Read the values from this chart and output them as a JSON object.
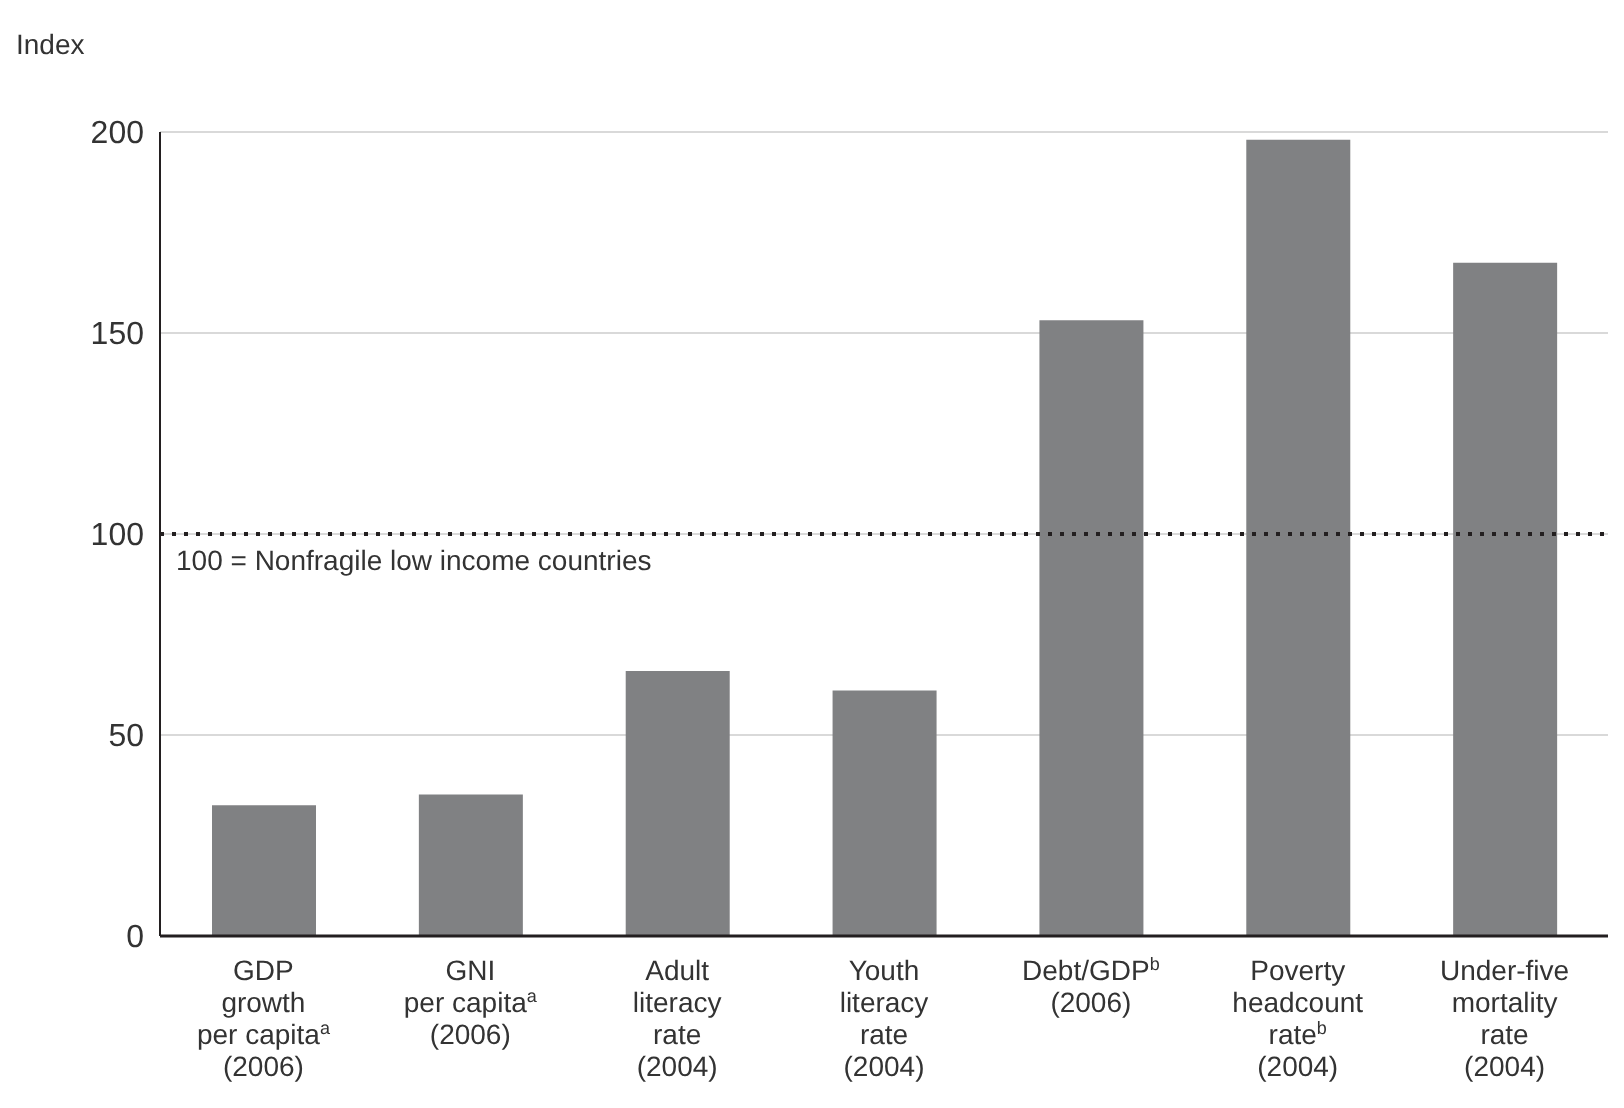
{
  "chart_data": {
    "type": "bar",
    "ylabel": "Index",
    "categories": [
      "GDP\ngrowth\nper capita$^{a}$\n(2006)",
      "GNI\nper capita$^{a}$\n(2006)",
      "Adult\nliteracy\nrate\n(2004)",
      "Youth\nliteracy\nrate\n(2004)",
      "Debt/GDP$^{b}$\n(2006)",
      "Poverty\nheadcount\nrate$^{b}$\n(2004)",
      "Under-five\nmortality\nrate\n(2004)"
    ],
    "values": [
      32.5,
      35.2,
      65.9,
      61.1,
      153.2,
      198.1,
      167.5
    ],
    "color": "#808183",
    "ylim": [
      0,
      200
    ],
    "yticks": [
      0,
      50,
      100,
      150,
      200
    ],
    "grid": "y",
    "ref_lines": [
      {
        "axis": "y",
        "value": 100,
        "label": "100 = Nonfragile low income countries",
        "color": "#231f20",
        "line_style": "dotted"
      }
    ]
  }
}
